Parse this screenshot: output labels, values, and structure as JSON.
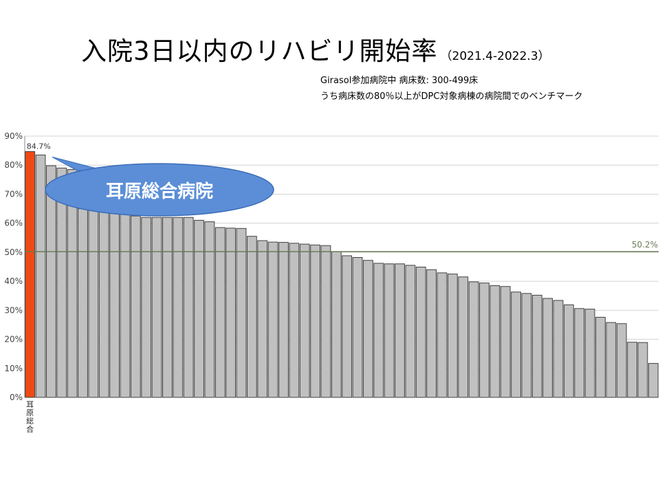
{
  "title": {
    "main": "入院3日以内のリハビリ開始率",
    "period": "（2021.4-2022.3）"
  },
  "notes": {
    "line1": "Girasol参加病院中  病床数: 300-499床",
    "line2": "うち病床数の80％以上がDPC対象病棟の病院間でのベンチマーク"
  },
  "chart_data": {
    "type": "bar",
    "ylim": [
      0,
      90
    ],
    "yticks": [
      "0%",
      "10%",
      "20%",
      "30%",
      "40%",
      "50%",
      "60%",
      "70%",
      "80%",
      "90%"
    ],
    "grid": true,
    "values": [
      84.7,
      83.5,
      79.8,
      79.0,
      78.5,
      65.0,
      64.5,
      64.0,
      63.5,
      63.0,
      62.5,
      62.0,
      62.0,
      62.0,
      62.0,
      62.0,
      61.0,
      60.5,
      58.5,
      58.3,
      58.2,
      55.5,
      54.0,
      53.5,
      53.4,
      53.1,
      52.8,
      52.5,
      52.3,
      50.2,
      48.8,
      48.2,
      47.2,
      46.2,
      46.0,
      46.0,
      45.5,
      44.9,
      44.0,
      42.9,
      42.5,
      41.5,
      39.8,
      39.4,
      38.5,
      38.2,
      36.3,
      35.8,
      35.2,
      34.1,
      33.4,
      31.9,
      30.6,
      30.4,
      27.6,
      25.8,
      25.4,
      19.0,
      18.9,
      11.7
    ],
    "highlight_index": 0,
    "highlight_label": "84.7%",
    "highlight_category": "耳原総合",
    "benchmark": {
      "value": 50.2,
      "label": "50.2%"
    },
    "callout": "耳原総合病院",
    "colors": {
      "highlight": "#f04a14",
      "bar": "#c0c0c0",
      "bar_stroke": "#404040",
      "grid": "#d4d4d4",
      "benchmark": "#6b7b55",
      "callout": "#5b8ed6"
    }
  }
}
